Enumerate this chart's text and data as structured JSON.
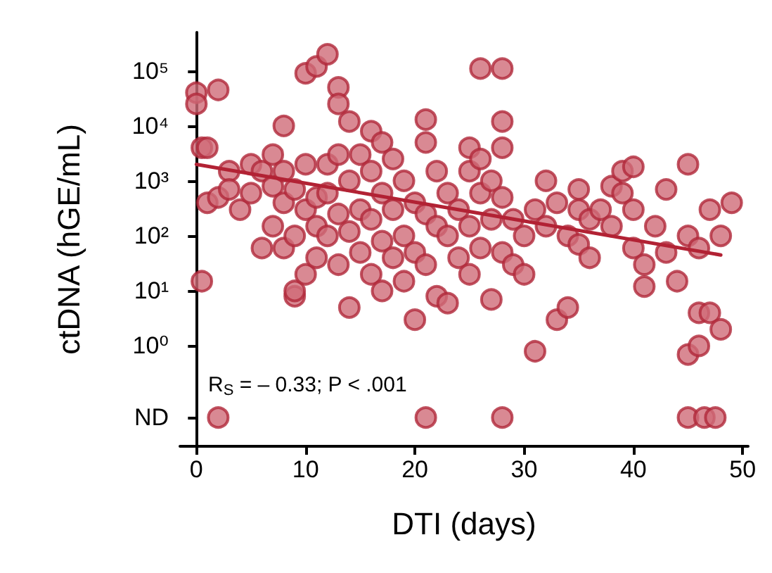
{
  "chart_data": {
    "type": "scatter",
    "xlabel": "DTI (days)",
    "ylabel": "ctDNA (hGE/mL)",
    "log": "y",
    "grid": false,
    "xlim": [
      -1.5,
      50.5
    ],
    "xticks": [
      0,
      10,
      20,
      30,
      40,
      50
    ],
    "ylim": [
      0.015,
      500000
    ],
    "yticks": [
      {
        "value": 0.05,
        "label": "ND"
      },
      {
        "value": 1,
        "label": "10⁰"
      },
      {
        "value": 10,
        "label": "10¹"
      },
      {
        "value": 100,
        "label": "10²"
      },
      {
        "value": 1000,
        "label": "10³"
      },
      {
        "value": 10000,
        "label": "10⁴"
      },
      {
        "value": 100000,
        "label": "10⁵"
      }
    ],
    "annotations": [
      "R$_{S}$ = – 0.33; P < .001"
    ],
    "series": [
      {
        "color": "#d06b78",
        "marker": "circle",
        "x": [
          0,
          0,
          0.5,
          1,
          2,
          1,
          0.5,
          2,
          3,
          3,
          4,
          5,
          5,
          6,
          6,
          7,
          7,
          7,
          8,
          8,
          8,
          8,
          9,
          9,
          9,
          9,
          10,
          10,
          10,
          10,
          11,
          11,
          11,
          11,
          12,
          12,
          12,
          12,
          13,
          13,
          13,
          13,
          13,
          14,
          14,
          14,
          14,
          15,
          15,
          15,
          16,
          16,
          16,
          16,
          17,
          17,
          17,
          17,
          18,
          18,
          18,
          19,
          19,
          19,
          20,
          20,
          20,
          21,
          21,
          21,
          21,
          22,
          22,
          22,
          23,
          23,
          23,
          24,
          24,
          25,
          25,
          25,
          25,
          26,
          26,
          26,
          26,
          27,
          27,
          27,
          28,
          28,
          28,
          28,
          28,
          29,
          29,
          30,
          30,
          31,
          31,
          32,
          32,
          33,
          33,
          34,
          34,
          35,
          35,
          35,
          36,
          36,
          37,
          38,
          38,
          39,
          39,
          40,
          40,
          40,
          41,
          41,
          42,
          43,
          43,
          44,
          45,
          45,
          45,
          46,
          46,
          46,
          47,
          47,
          48,
          48,
          49,
          2,
          21,
          28,
          45,
          46.5,
          47.5
        ],
        "values": [
          40000,
          25000,
          4000,
          4000,
          45000,
          400,
          15,
          500,
          1500,
          700,
          300,
          2000,
          600,
          1500,
          60,
          3000,
          800,
          150,
          10000,
          1500,
          400,
          60,
          700,
          100,
          8,
          10,
          90000,
          2000,
          300,
          20,
          120000,
          500,
          150,
          40,
          200000,
          2000,
          600,
          100,
          50000,
          25000,
          3000,
          250,
          30,
          12000,
          1000,
          120,
          5,
          3000,
          300,
          50,
          8000,
          1500,
          200,
          20,
          5000,
          600,
          80,
          10,
          2500,
          300,
          40,
          1000,
          100,
          15,
          400,
          3,
          50,
          13000,
          5000,
          250,
          30,
          1500,
          150,
          8,
          600,
          100,
          6,
          300,
          40,
          4000,
          1500,
          150,
          20,
          110000,
          2500,
          600,
          60,
          1000,
          200,
          7,
          110000,
          12000,
          4000,
          500,
          50,
          200,
          30,
          100,
          20,
          300,
          0.8,
          1000,
          150,
          400,
          3,
          100,
          5,
          700,
          300,
          70,
          200,
          40,
          300,
          800,
          150,
          1500,
          600,
          1800,
          300,
          60,
          30,
          12,
          150,
          700,
          50,
          15,
          2000,
          100,
          0.7,
          60,
          4,
          1,
          300,
          4,
          100,
          2,
          400,
          0.05,
          0.05,
          0.05,
          0.05,
          0.05,
          0.05
        ]
      },
      {
        "type": "line",
        "marker": "none",
        "color": "#b22234",
        "x": [
          0,
          48
        ],
        "values": [
          2000,
          45
        ]
      }
    ]
  }
}
